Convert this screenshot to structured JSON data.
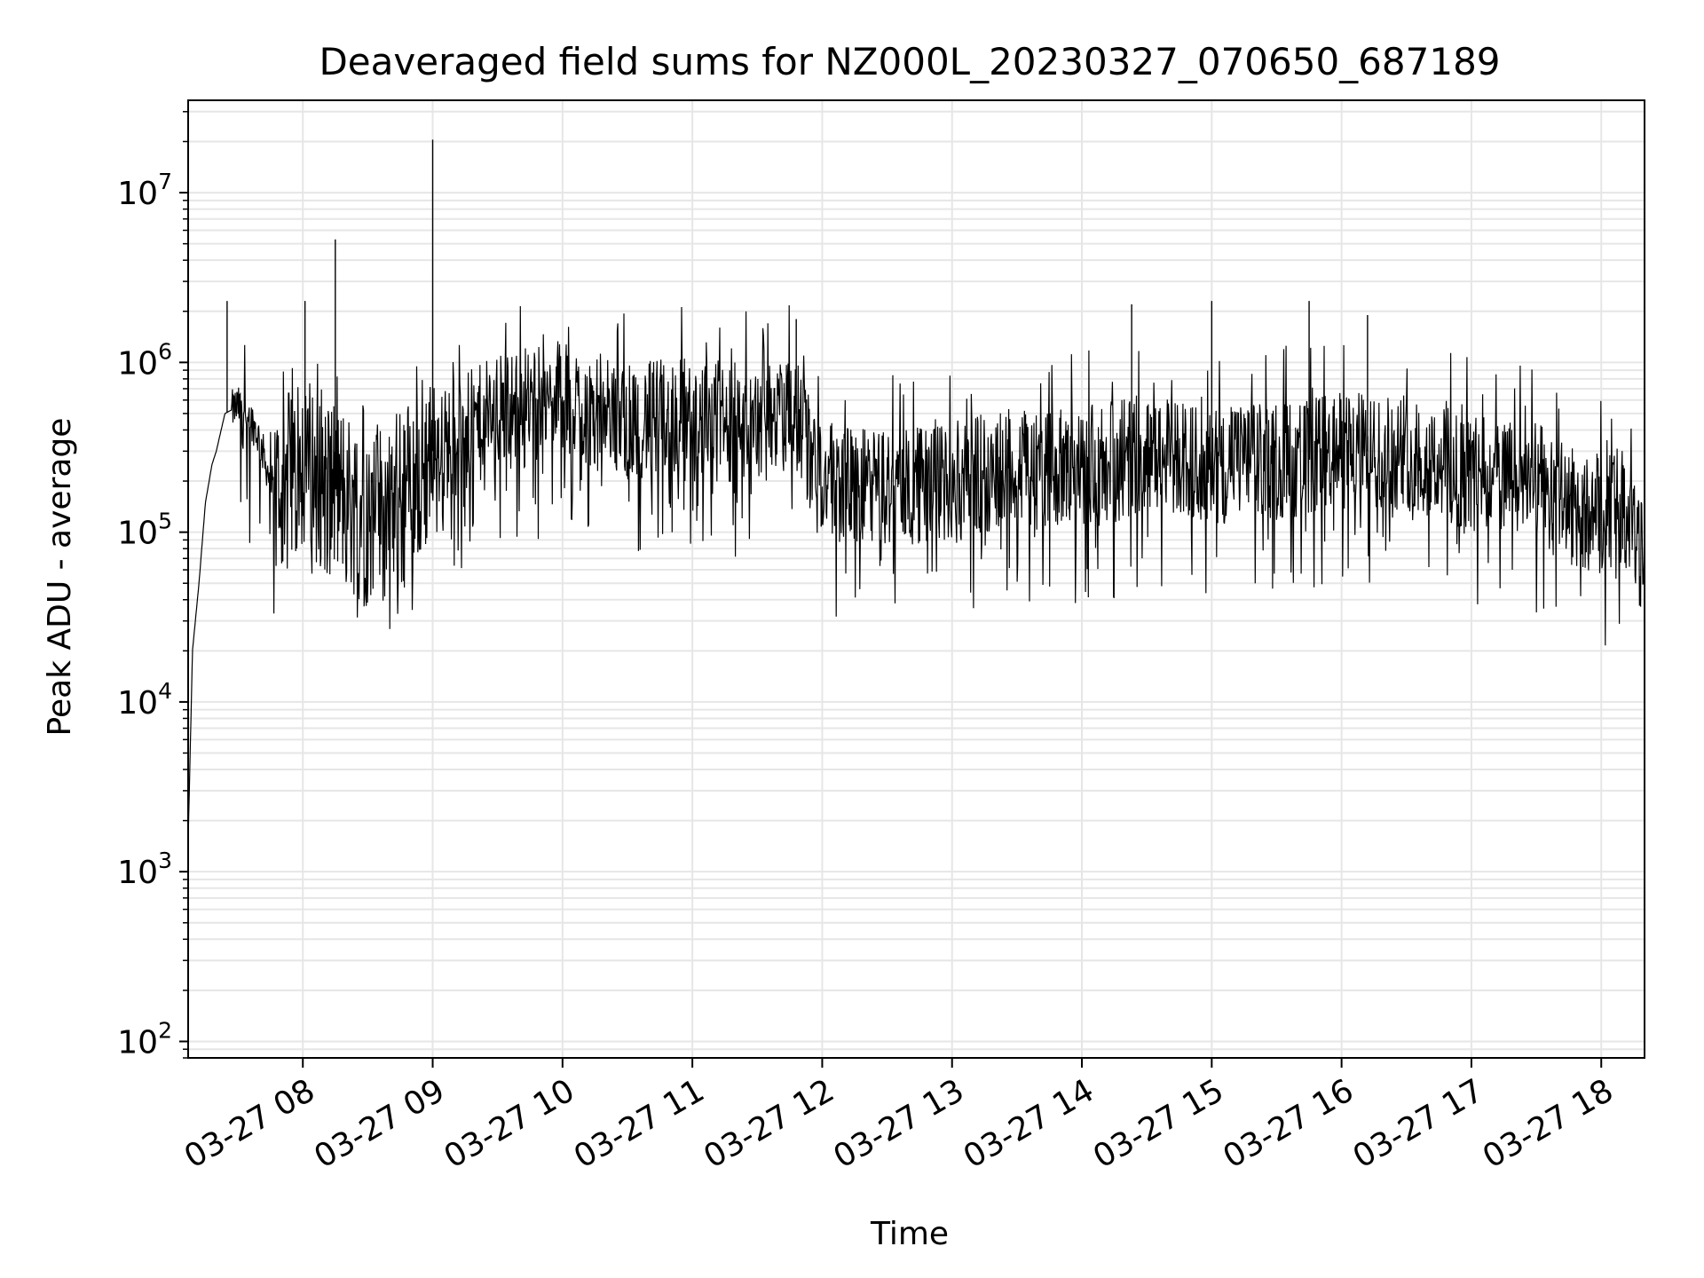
{
  "chart_data": {
    "type": "line",
    "title": "Deaveraged field sums for NZ000L_20230327_070650_687189",
    "xlabel": "Time",
    "ylabel": "Peak ADU - average",
    "yscale": "log",
    "ylim": [
      80,
      35000000
    ],
    "xlim": [
      "2023-03-27 07:07",
      "2023-03-27 18:20"
    ],
    "grid": true,
    "line_color": "#000000",
    "grid_color": "#e6e6e6",
    "x_ticks": [
      {
        "value": "2023-03-27 08:00",
        "label": "03-27 08"
      },
      {
        "value": "2023-03-27 09:00",
        "label": "03-27 09"
      },
      {
        "value": "2023-03-27 10:00",
        "label": "03-27 10"
      },
      {
        "value": "2023-03-27 11:00",
        "label": "03-27 11"
      },
      {
        "value": "2023-03-27 12:00",
        "label": "03-27 12"
      },
      {
        "value": "2023-03-27 13:00",
        "label": "03-27 13"
      },
      {
        "value": "2023-03-27 14:00",
        "label": "03-27 14"
      },
      {
        "value": "2023-03-27 15:00",
        "label": "03-27 15"
      },
      {
        "value": "2023-03-27 16:00",
        "label": "03-27 16"
      },
      {
        "value": "2023-03-27 17:00",
        "label": "03-27 17"
      },
      {
        "value": "2023-03-27 18:00",
        "label": "03-27 18"
      }
    ],
    "y_ticks": [
      {
        "value": 100,
        "base": "10",
        "exp": "2"
      },
      {
        "value": 1000,
        "base": "10",
        "exp": "3"
      },
      {
        "value": 10000,
        "base": "10",
        "exp": "4"
      },
      {
        "value": 100000,
        "base": "10",
        "exp": "5"
      },
      {
        "value": 1000000,
        "base": "10",
        "exp": "6"
      },
      {
        "value": 10000000,
        "base": "10",
        "exp": "7"
      }
    ],
    "series": [
      {
        "x": [
          "2023-03-27 07:07",
          "2023-03-27 07:09",
          "2023-03-27 07:12",
          "2023-03-27 07:15",
          "2023-03-27 07:18",
          "2023-03-27 07:20",
          "2023-03-27 07:24",
          "2023-03-27 07:30",
          "2023-03-27 07:35",
          "2023-03-27 07:40",
          "2023-03-27 07:45",
          "2023-03-27 07:48",
          "2023-03-27 08:00",
          "2023-03-27 08:15",
          "2023-03-27 08:30",
          "2023-03-27 08:45",
          "2023-03-27 09:00",
          "2023-03-27 09:30",
          "2023-03-27 10:00",
          "2023-03-27 10:30",
          "2023-03-27 11:00",
          "2023-03-27 11:30",
          "2023-03-27 11:48",
          "2023-03-27 12:00",
          "2023-03-27 12:30",
          "2023-03-27 13:00",
          "2023-03-27 13:30",
          "2023-03-27 14:00",
          "2023-03-27 14:30",
          "2023-03-27 15:00",
          "2023-03-27 15:30",
          "2023-03-27 16:00",
          "2023-03-27 16:30",
          "2023-03-27 17:00",
          "2023-03-27 17:30",
          "2023-03-27 17:55",
          "2023-03-27 18:10",
          "2023-03-27 18:20"
        ],
        "y": [
          1500,
          20000,
          50000,
          150000,
          250000,
          300000,
          500000,
          550000,
          500000,
          350000,
          200000,
          160000,
          250000,
          180000,
          120000,
          150000,
          300000,
          500000,
          600000,
          450000,
          500000,
          400000,
          500000,
          200000,
          180000,
          200000,
          250000,
          230000,
          280000,
          250000,
          260000,
          300000,
          300000,
          220000,
          200000,
          120000,
          150000,
          60000
        ]
      }
    ],
    "spikes": [
      {
        "x": "2023-03-27 07:25",
        "y": 2300000
      },
      {
        "x": "2023-03-27 08:01",
        "y": 2300000
      },
      {
        "x": "2023-03-27 08:15",
        "y": 5300000
      },
      {
        "x": "2023-03-27 09:00",
        "y": 20500000
      },
      {
        "x": "2023-03-27 11:48",
        "y": 1800000
      },
      {
        "x": "2023-03-27 14:23",
        "y": 2200000
      },
      {
        "x": "2023-03-27 15:00",
        "y": 2300000
      },
      {
        "x": "2023-03-27 15:45",
        "y": 2300000
      },
      {
        "x": "2023-03-27 16:12",
        "y": 1900000
      }
    ]
  }
}
